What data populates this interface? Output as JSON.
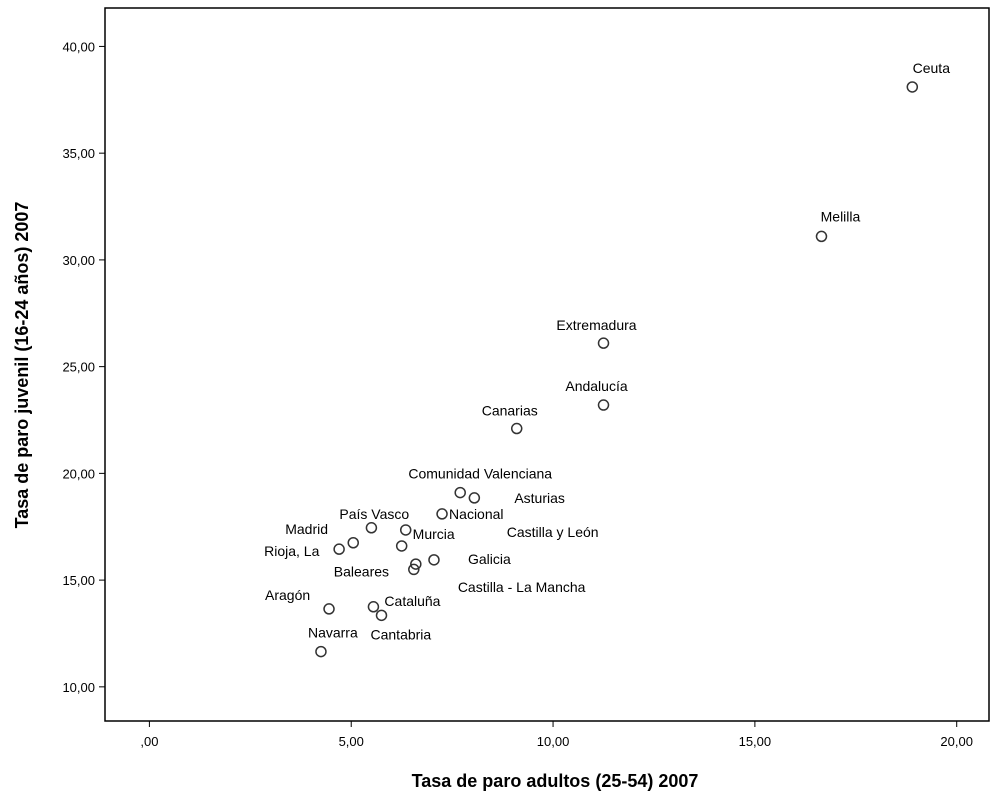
{
  "chart_data": {
    "type": "scatter",
    "xlabel": "Tasa de paro adultos (25-54) 2007",
    "ylabel": "Tasa de paro juvenil (16-24 años) 2007",
    "xlim": [
      -1.1,
      20.8
    ],
    "ylim": [
      8.4,
      41.8
    ],
    "x_ticks": [
      0,
      5,
      10,
      15,
      20
    ],
    "x_tick_labels": [
      ",00",
      "5,00",
      "10,00",
      "15,00",
      "20,00"
    ],
    "y_ticks": [
      10,
      15,
      20,
      25,
      30,
      35,
      40
    ],
    "y_tick_labels": [
      "10,00",
      "15,00",
      "20,00",
      "25,00",
      "30,00",
      "35,00",
      "40,00"
    ],
    "grid": false,
    "marker": "open-circle",
    "points": [
      {
        "label": "Ceuta",
        "x": 18.9,
        "y": 38.1
      },
      {
        "label": "Melilla",
        "x": 16.65,
        "y": 31.1
      },
      {
        "label": "Extremadura",
        "x": 11.25,
        "y": 26.1
      },
      {
        "label": "Andalucía",
        "x": 11.25,
        "y": 23.2
      },
      {
        "label": "Canarias",
        "x": 9.1,
        "y": 22.1
      },
      {
        "label": "Comunidad Valenciana",
        "x": 7.7,
        "y": 19.1
      },
      {
        "label": "Asturias",
        "x": 8.05,
        "y": 18.85
      },
      {
        "label": "Nacional",
        "x": 7.25,
        "y": 18.1
      },
      {
        "label": "País Vasco",
        "x": 5.5,
        "y": 17.45
      },
      {
        "label": "Castilla y León",
        "x": 6.35,
        "y": 17.35
      },
      {
        "label": "Madrid",
        "x": 5.05,
        "y": 16.75
      },
      {
        "label": "Murcia",
        "x": 6.25,
        "y": 16.6
      },
      {
        "label": "Rioja, La",
        "x": 4.7,
        "y": 16.45
      },
      {
        "label": "Galicia",
        "x": 7.05,
        "y": 15.95
      },
      {
        "label": "Castilla - La Mancha",
        "x": 6.6,
        "y": 15.75
      },
      {
        "label": "Baleares",
        "x": 6.55,
        "y": 15.5
      },
      {
        "label": "Aragón",
        "x": 4.45,
        "y": 13.65
      },
      {
        "label": "Cataluña",
        "x": 5.55,
        "y": 13.75
      },
      {
        "label": "Cantabria",
        "x": 5.75,
        "y": 13.35
      },
      {
        "label": "Navarra",
        "x": 4.25,
        "y": 11.65
      }
    ]
  }
}
